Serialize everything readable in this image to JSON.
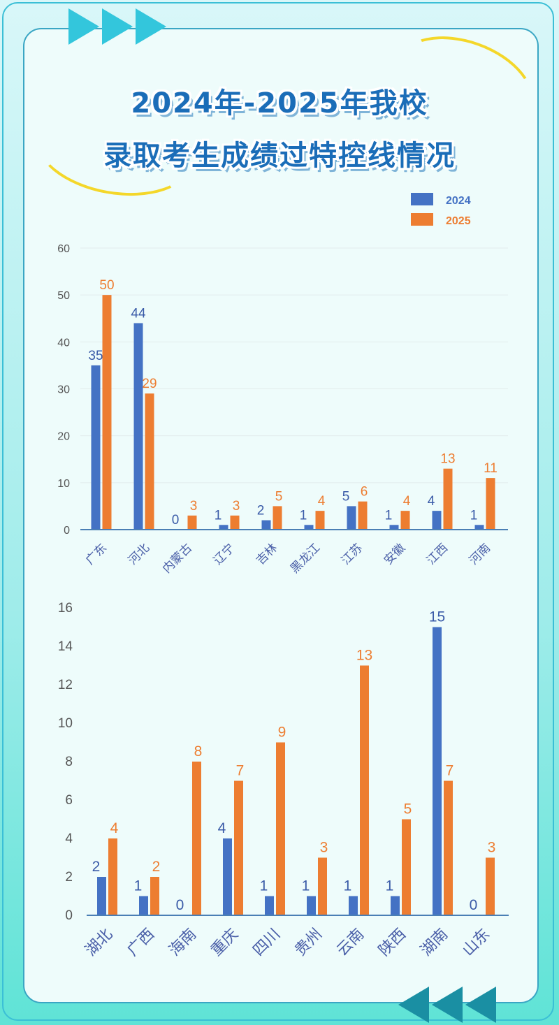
{
  "title_line1": "2024年-2025年我校",
  "title_line2": "录取考生成绩过特控线情况",
  "colors": {
    "s2024": "#4472c4",
    "s2025": "#ed7d31",
    "label2024": "#3a5ba8",
    "axis": "#4a7fb5",
    "grid": "#e2ecec",
    "tick": "#555555"
  },
  "chart_data": [
    {
      "type": "bar",
      "title": "",
      "legend": [
        "2024",
        "2025"
      ],
      "legend_position": "top-right",
      "categories": [
        "广东",
        "河北",
        "内蒙古",
        "辽宁",
        "吉林",
        "黑龙江",
        "江苏",
        "安徽",
        "江西",
        "河南"
      ],
      "series": [
        {
          "name": "2024",
          "values": [
            35,
            44,
            0,
            1,
            2,
            1,
            5,
            1,
            4,
            1
          ]
        },
        {
          "name": "2025",
          "values": [
            50,
            29,
            3,
            3,
            5,
            4,
            6,
            4,
            13,
            11
          ]
        }
      ],
      "yticks": [
        0,
        10,
        20,
        30,
        40,
        50,
        60
      ],
      "ylim": [
        0,
        60
      ],
      "grid": true
    },
    {
      "type": "bar",
      "title": "",
      "categories": [
        "湖北",
        "广西",
        "海南",
        "重庆",
        "四川",
        "贵州",
        "云南",
        "陕西",
        "湖南",
        "山东"
      ],
      "series": [
        {
          "name": "2024",
          "values": [
            2,
            1,
            0,
            4,
            1,
            1,
            1,
            1,
            15,
            0
          ]
        },
        {
          "name": "2025",
          "values": [
            4,
            2,
            8,
            7,
            9,
            3,
            13,
            5,
            7,
            3
          ]
        }
      ],
      "yticks": [
        0,
        2,
        4,
        6,
        8,
        10,
        12,
        14,
        16
      ],
      "ylim": [
        0,
        16
      ],
      "grid": false
    }
  ]
}
